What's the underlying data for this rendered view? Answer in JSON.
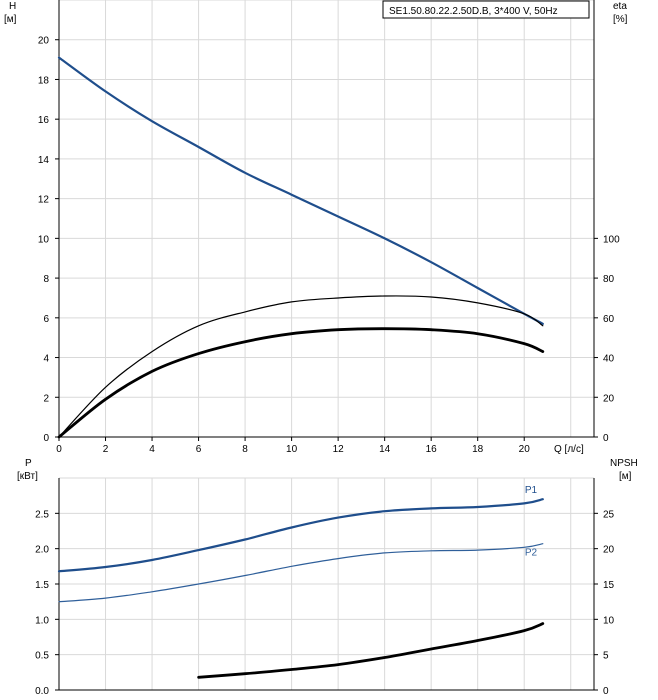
{
  "chart_data": [
    {
      "type": "line",
      "title": "SE1.50.80.22.2.50D.B, 3*400 V, 50Hz",
      "xlabel": "Q [л/с]",
      "x_ticks": [
        0,
        2,
        4,
        6,
        8,
        10,
        12,
        14,
        16,
        18,
        20
      ],
      "xlim": [
        0,
        23
      ],
      "y_left": {
        "label_top": "H",
        "label_unit": "[м]",
        "ticks": [
          0,
          2,
          4,
          6,
          8,
          10,
          12,
          14,
          16,
          18,
          20
        ],
        "lim": [
          0,
          22
        ]
      },
      "y_right": {
        "label_top": "eta",
        "label_unit": "[%]",
        "ticks": [
          0,
          20,
          40,
          60,
          80,
          100
        ],
        "lim": [
          0,
          220
        ]
      },
      "grid": true,
      "series": [
        {
          "axis": "left",
          "color": "#1f4e8c",
          "width": 2.2,
          "x": [
            0,
            2,
            4,
            6,
            8,
            10,
            12,
            14,
            16,
            18,
            20,
            20.8
          ],
          "y": [
            19.1,
            17.4,
            15.9,
            14.6,
            13.3,
            12.2,
            11.1,
            10.0,
            8.8,
            7.5,
            6.2,
            5.7
          ]
        },
        {
          "axis": "right",
          "color": "#000000",
          "width": 1.2,
          "x": [
            0,
            2,
            4,
            6,
            8,
            10,
            12,
            14,
            16,
            18,
            20,
            20.8
          ],
          "y": [
            0,
            25,
            43,
            56,
            63,
            68,
            70,
            71,
            70.5,
            67.5,
            62,
            56
          ]
        },
        {
          "axis": "right",
          "color": "#000000",
          "width": 2.8,
          "x": [
            0,
            2,
            4,
            6,
            8,
            10,
            12,
            14,
            16,
            18,
            20,
            20.8
          ],
          "y": [
            0,
            19,
            33,
            42,
            48,
            52,
            54,
            54.5,
            54,
            52,
            47,
            43
          ]
        }
      ]
    },
    {
      "type": "line",
      "xlim": [
        0,
        23
      ],
      "y_left": {
        "label_top": "P",
        "label_unit": "[кВт]",
        "ticks": [
          "0.0",
          "0.5",
          "1.0",
          "1.5",
          "2.0",
          "2.5"
        ],
        "lim": [
          0,
          3.0
        ]
      },
      "y_right": {
        "label_top": "NPSH",
        "label_unit": "[м]",
        "ticks": [
          0,
          5,
          10,
          15,
          20,
          25
        ],
        "lim": [
          0,
          30
        ]
      },
      "grid": true,
      "series": [
        {
          "name": "P1",
          "axis": "left",
          "color": "#1f4e8c",
          "width": 2.2,
          "x": [
            0,
            2,
            4,
            6,
            8,
            10,
            12,
            14,
            16,
            18,
            20,
            20.8
          ],
          "y": [
            1.68,
            1.74,
            1.84,
            1.98,
            2.13,
            2.3,
            2.44,
            2.53,
            2.57,
            2.59,
            2.64,
            2.7
          ]
        },
        {
          "name": "P2",
          "axis": "left",
          "color": "#2f5f9a",
          "width": 1.2,
          "x": [
            0,
            2,
            4,
            6,
            8,
            10,
            12,
            14,
            16,
            18,
            20,
            20.8
          ],
          "y": [
            1.25,
            1.3,
            1.39,
            1.5,
            1.62,
            1.75,
            1.86,
            1.94,
            1.97,
            1.98,
            2.02,
            2.07
          ]
        },
        {
          "axis": "right",
          "color": "#000000",
          "width": 2.8,
          "x": [
            6,
            8,
            10,
            12,
            14,
            16,
            18,
            20,
            20.8
          ],
          "y": [
            1.8,
            2.3,
            2.9,
            3.6,
            4.6,
            5.8,
            7.0,
            8.4,
            9.4
          ]
        }
      ]
    }
  ]
}
